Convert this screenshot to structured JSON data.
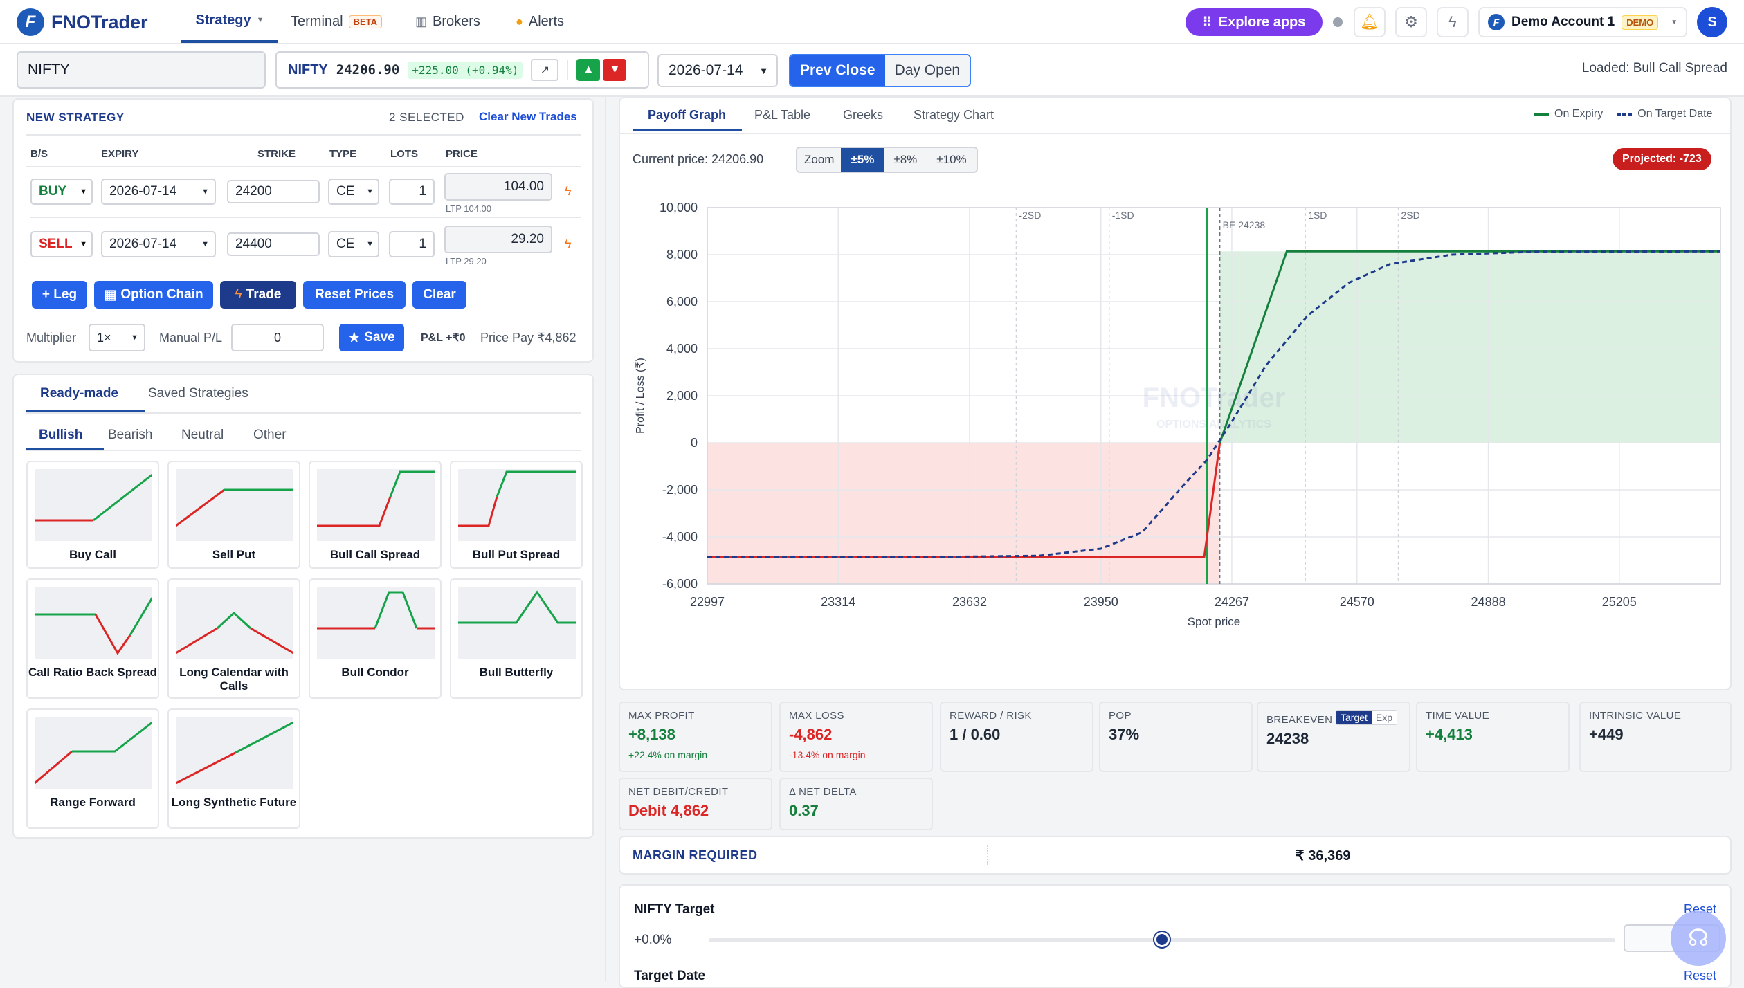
{
  "app": {
    "name": "FNOTrader"
  },
  "nav": [
    {
      "label": "Strategy",
      "active": true
    },
    {
      "label": "Terminal",
      "badge": "BETA"
    },
    {
      "label": "Brokers"
    },
    {
      "label": "Alerts"
    }
  ],
  "topbar": {
    "explore": "Explore apps",
    "account": "Demo Account 1",
    "account_badge": "DEMO",
    "avatar": "S"
  },
  "symbolbar": {
    "symbol": "NIFTY",
    "quote_symbol": "NIFTY",
    "price": "24206.90",
    "change": "+225.00 (+0.94%)",
    "expiry": "2026-07-14",
    "prev_close": "Prev Close",
    "day_open": "Day Open",
    "loaded": "Loaded: Bull Call Spread"
  },
  "strategy": {
    "title": "NEW STRATEGY",
    "selected": "2 SELECTED",
    "clear_new": "Clear New Trades",
    "headers": [
      "B/S",
      "EXPIRY",
      "STRIKE",
      "TYPE",
      "LOTS",
      "PRICE"
    ],
    "legs": [
      {
        "side": "BUY",
        "expiry": "2026-07-14",
        "strike": "24200",
        "type": "CE",
        "lots": "1",
        "price": "104.00",
        "ltp": "LTP 104.00"
      },
      {
        "side": "SELL",
        "expiry": "2026-07-14",
        "strike": "24400",
        "type": "CE",
        "lots": "1",
        "price": "29.20",
        "ltp": "LTP 29.20"
      }
    ],
    "buttons": {
      "leg": "+ Leg",
      "chain": "Option Chain",
      "trade": "Trade",
      "reset": "Reset Prices",
      "clear": "Clear"
    },
    "multiplier_label": "Multiplier",
    "multiplier": "1×",
    "manual_label": "Manual P/L",
    "manual_value": "0",
    "save": "Save",
    "pnl": "P&L +₹0",
    "price_pay": "Price Pay ₹4,862"
  },
  "library": {
    "tabs": [
      "Ready-made",
      "Saved Strategies"
    ],
    "subtabs": [
      "Bullish",
      "Bearish",
      "Neutral",
      "Other"
    ],
    "cards": [
      {
        "name": "Buy Call"
      },
      {
        "name": "Sell Put"
      },
      {
        "name": "Bull Call Spread"
      },
      {
        "name": "Bull Put Spread"
      },
      {
        "name": "Call Ratio Back Spread"
      },
      {
        "name": "Long Calendar with Calls"
      },
      {
        "name": "Bull Condor"
      },
      {
        "name": "Bull Butterfly"
      },
      {
        "name": "Range Forward"
      },
      {
        "name": "Long Synthetic Future"
      }
    ]
  },
  "chart_tabs": [
    "Payoff Graph",
    "P&L Table",
    "Greeks",
    "Strategy Chart"
  ],
  "legend": {
    "expiry": "On Expiry",
    "target": "On Target Date"
  },
  "chart_controls": {
    "current": "Current price: 24206.90",
    "zoom": "Zoom",
    "opts": [
      "±5%",
      "±8%",
      "±10%"
    ],
    "projected": "Projected: -723"
  },
  "watermark": {
    "name": "FNOTrader",
    "sub": "OPTIONS ANALYTICS"
  },
  "chart_data": {
    "type": "line",
    "xlabel": "Spot price",
    "ylabel": "Profit / Loss (₹)",
    "xlim": [
      22997,
      25450
    ],
    "ylim": [
      -6000,
      10000
    ],
    "x_ticks": [
      "22997",
      "23314",
      "23632",
      "23950",
      "24267",
      "24570",
      "24888",
      "25205"
    ],
    "y_ticks": [
      "10,000",
      "8,000",
      "6,000",
      "4,000",
      "2,000",
      "0",
      "-2,000",
      "-4,000",
      "-6,000"
    ],
    "sd_lines": [
      {
        "label": "-2SD",
        "x": 23745
      },
      {
        "label": "-1SD",
        "x": 23970
      },
      {
        "label": "1SD",
        "x": 24445
      },
      {
        "label": "2SD",
        "x": 24670
      }
    ],
    "spot": 24207,
    "breakeven": {
      "label": "BE 24238",
      "x": 24238
    },
    "series": [
      {
        "name": "On Expiry",
        "color": "#15803d",
        "x": [
          22997,
          24200,
          24400,
          25450
        ],
        "y": [
          -4862,
          -4862,
          8138,
          8138
        ]
      },
      {
        "name": "On Target Date",
        "color": "#1e3a8a",
        "x": [
          22997,
          23500,
          23800,
          23950,
          24050,
          24150,
          24207,
          24267,
          24350,
          24450,
          24550,
          24650,
          24800,
          25000,
          25450
        ],
        "y": [
          -4862,
          -4860,
          -4800,
          -4500,
          -3800,
          -1800,
          -723,
          900,
          3300,
          5400,
          6800,
          7600,
          8000,
          8120,
          8138
        ]
      }
    ]
  },
  "metrics": [
    {
      "title": "MAX PROFIT",
      "value": "+8,138",
      "sub": "+22.4% on margin",
      "tone": "green"
    },
    {
      "title": "MAX LOSS",
      "value": "-4,862",
      "sub": "-13.4% on margin",
      "tone": "red"
    },
    {
      "title": "REWARD / RISK",
      "value": "1 / 0.60",
      "sub": "",
      "tone": ""
    },
    {
      "title": "POP",
      "value": "37%",
      "sub": "",
      "tone": ""
    },
    {
      "title": "BREAKEVEN",
      "value": "24238",
      "sub": "",
      "tone": "",
      "toggle": [
        "Target",
        "Exp"
      ]
    },
    {
      "title": "TIME VALUE",
      "value": "+4,413",
      "sub": "",
      "tone": "green"
    },
    {
      "title": "INTRINSIC VALUE",
      "value": "+449",
      "sub": "",
      "tone": ""
    },
    {
      "title": "NET DEBIT/CREDIT",
      "value": "Debit 4,862",
      "sub": "",
      "tone": "red"
    },
    {
      "title": "Δ NET DELTA",
      "value": "0.37",
      "sub": "",
      "tone": "green"
    }
  ],
  "margin": {
    "label": "MARGIN REQUIRED",
    "value": "₹ 36,369"
  },
  "target": {
    "title": "NIFTY Target",
    "reset": "Reset",
    "pct": "+0.0%",
    "slider": 0.5,
    "date_title": "Target Date",
    "date_reset": "Reset"
  },
  "colors": {
    "accent": "#2563eb",
    "navy": "#1e3a8a",
    "profit": "#15803d",
    "loss": "#dc2626"
  }
}
